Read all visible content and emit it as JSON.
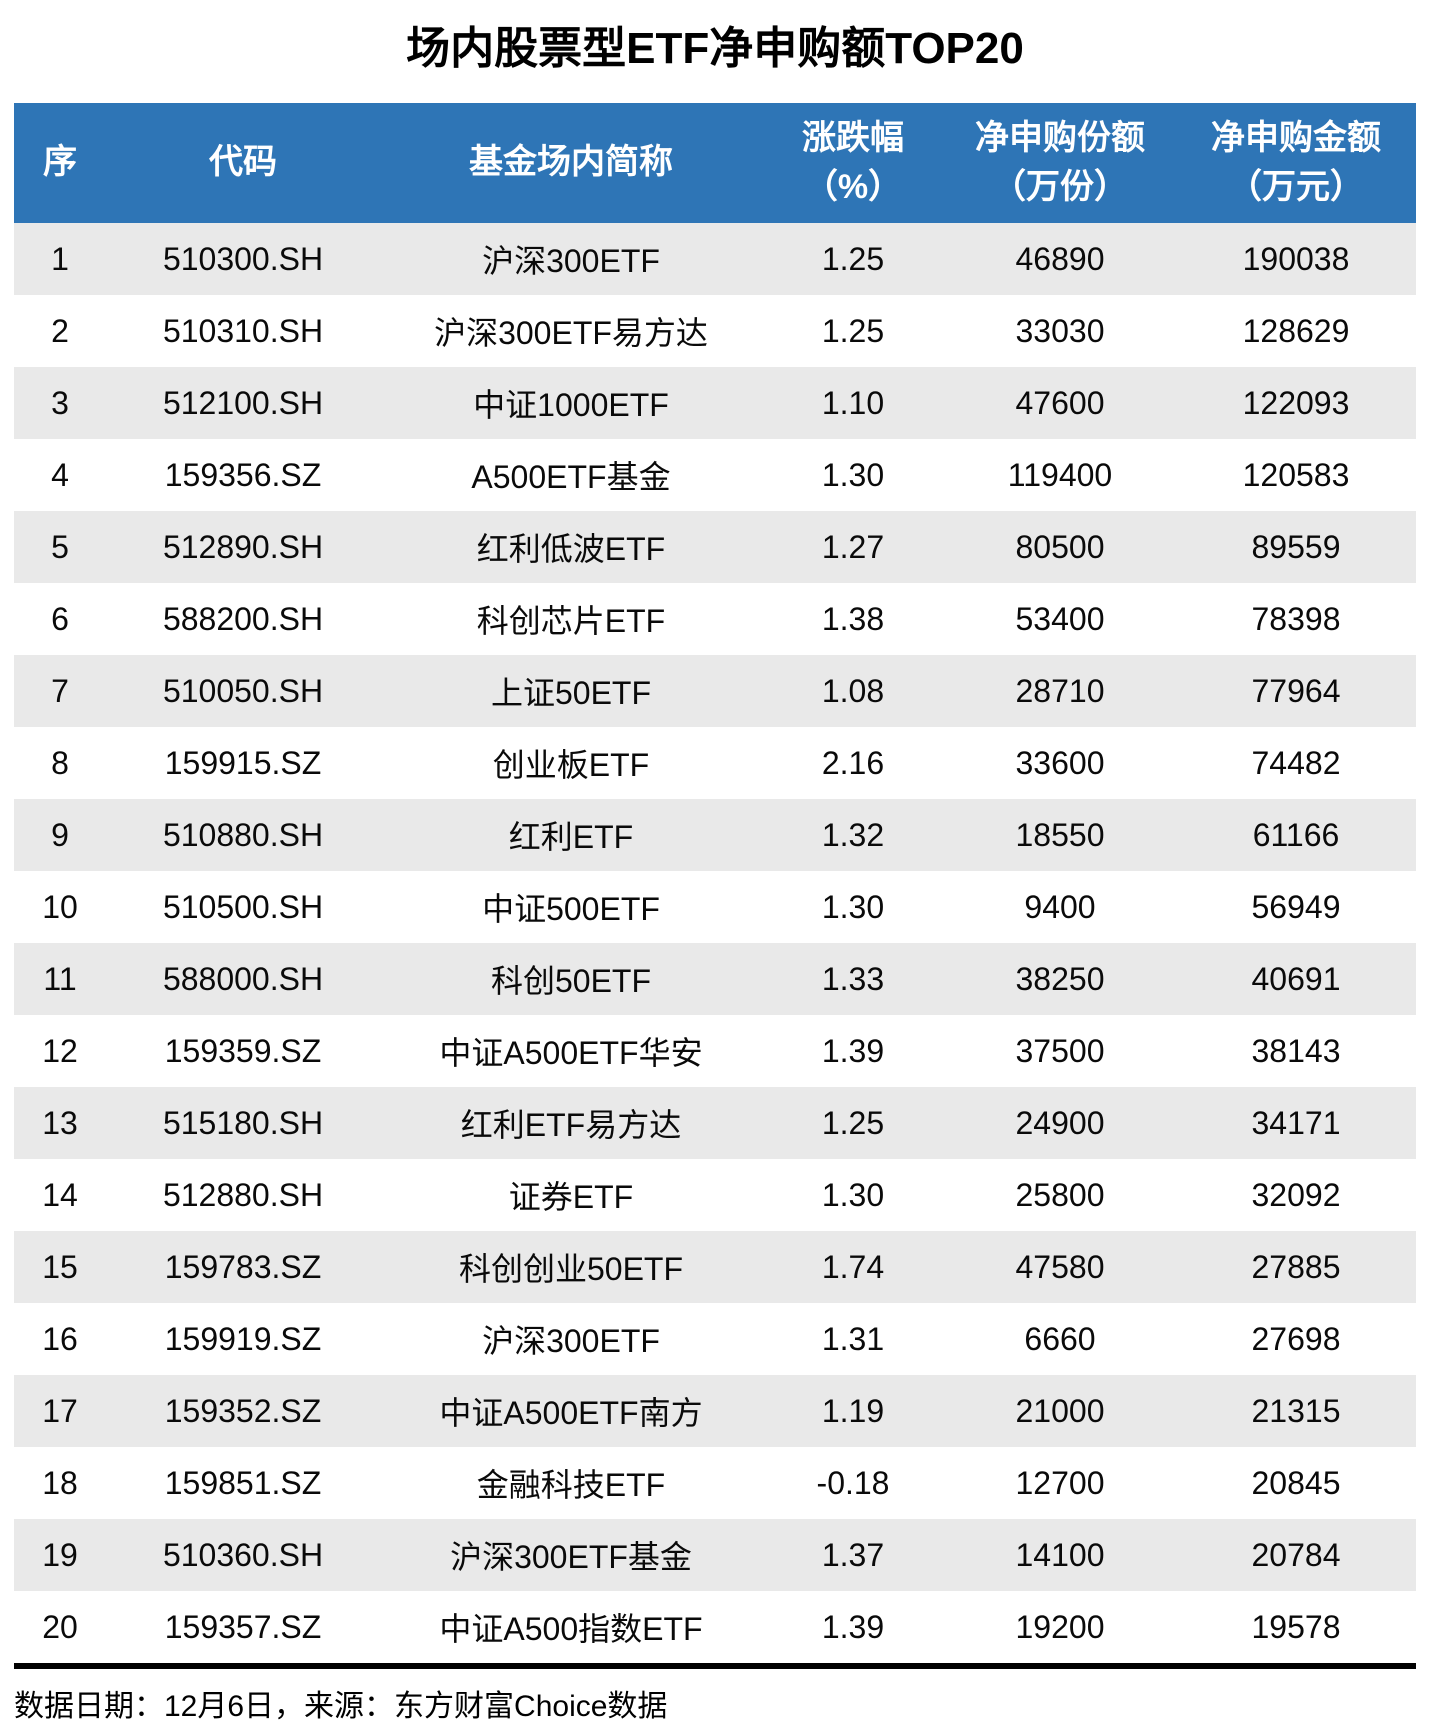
{
  "title": "场内股票型ETF净申购额TOP20",
  "footer": {
    "source_text": "数据日期：12月6日，来源：东方财富Choice数据"
  },
  "colors": {
    "header_bg": "#2E75B6",
    "header_text": "#FFFFFF",
    "stripe_bg": "#E9E9E9",
    "row_bg": "#FFFFFF",
    "body_text": "#0A0A0A",
    "divider": "#000000"
  },
  "chart_data": {
    "type": "table",
    "title": "场内股票型ETF净申购额TOP20",
    "columns": [
      {
        "key": "rank",
        "label": "序",
        "line2": ""
      },
      {
        "key": "code",
        "label": "代码",
        "line2": ""
      },
      {
        "key": "name",
        "label": "基金场内简称",
        "line2": ""
      },
      {
        "key": "change",
        "label": "涨跌幅",
        "line2": "（%）"
      },
      {
        "key": "shares",
        "label": "净申购份额",
        "line2": "（万份）"
      },
      {
        "key": "amount",
        "label": "净申购金额",
        "line2": "（万元）"
      }
    ],
    "rows": [
      [
        "1",
        "510300.SH",
        "沪深300ETF",
        "1.25",
        "46890",
        "190038"
      ],
      [
        "2",
        "510310.SH",
        "沪深300ETF易方达",
        "1.25",
        "33030",
        "128629"
      ],
      [
        "3",
        "512100.SH",
        "中证1000ETF",
        "1.10",
        "47600",
        "122093"
      ],
      [
        "4",
        "159356.SZ",
        "A500ETF基金",
        "1.30",
        "119400",
        "120583"
      ],
      [
        "5",
        "512890.SH",
        "红利低波ETF",
        "1.27",
        "80500",
        "89559"
      ],
      [
        "6",
        "588200.SH",
        "科创芯片ETF",
        "1.38",
        "53400",
        "78398"
      ],
      [
        "7",
        "510050.SH",
        "上证50ETF",
        "1.08",
        "28710",
        "77964"
      ],
      [
        "8",
        "159915.SZ",
        "创业板ETF",
        "2.16",
        "33600",
        "74482"
      ],
      [
        "9",
        "510880.SH",
        "红利ETF",
        "1.32",
        "18550",
        "61166"
      ],
      [
        "10",
        "510500.SH",
        "中证500ETF",
        "1.30",
        "9400",
        "56949"
      ],
      [
        "11",
        "588000.SH",
        "科创50ETF",
        "1.33",
        "38250",
        "40691"
      ],
      [
        "12",
        "159359.SZ",
        "中证A500ETF华安",
        "1.39",
        "37500",
        "38143"
      ],
      [
        "13",
        "515180.SH",
        "红利ETF易方达",
        "1.25",
        "24900",
        "34171"
      ],
      [
        "14",
        "512880.SH",
        "证券ETF",
        "1.30",
        "25800",
        "32092"
      ],
      [
        "15",
        "159783.SZ",
        "科创创业50ETF",
        "1.74",
        "47580",
        "27885"
      ],
      [
        "16",
        "159919.SZ",
        "沪深300ETF",
        "1.31",
        "6660",
        "27698"
      ],
      [
        "17",
        "159352.SZ",
        "中证A500ETF南方",
        "1.19",
        "21000",
        "21315"
      ],
      [
        "18",
        "159851.SZ",
        "金融科技ETF",
        "-0.18",
        "12700",
        "20845"
      ],
      [
        "19",
        "510360.SH",
        "沪深300ETF基金",
        "1.37",
        "14100",
        "20784"
      ],
      [
        "20",
        "159357.SZ",
        "中证A500指数ETF",
        "1.39",
        "19200",
        "19578"
      ]
    ]
  }
}
